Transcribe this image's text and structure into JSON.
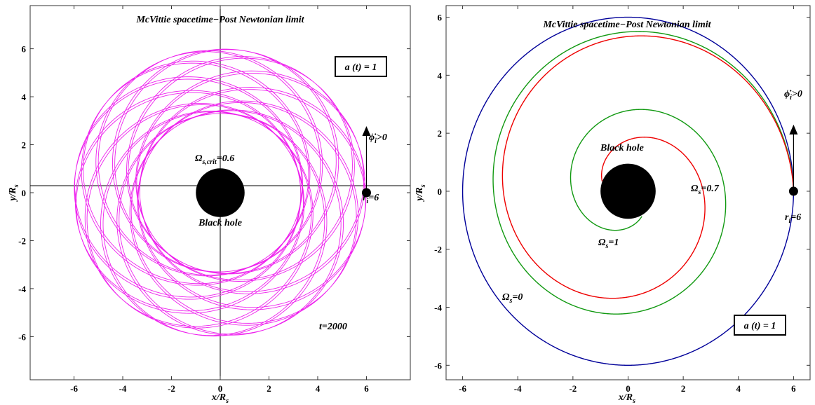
{
  "chart_data": [
    {
      "type": "line",
      "title": "McVittie spacetime−Post Newtonian limit",
      "xlabel": "x/R_s",
      "ylabel": "y/R_s",
      "xlim": [
        -7.8,
        7.8
      ],
      "ylim": [
        -7.8,
        7.8
      ],
      "xticks": [
        "-6",
        "-4",
        "-2",
        "0",
        "2",
        "4",
        "6"
      ],
      "yticks": [
        "-6",
        "-4",
        "-2",
        "0",
        "2",
        "4",
        "6"
      ],
      "tick_values": [
        -6,
        -4,
        -2,
        0,
        2,
        4,
        6
      ],
      "black_hole": {
        "label": "Black hole",
        "center": [
          0,
          0
        ],
        "radius": 1
      },
      "initial_point": {
        "x": 6,
        "y": 0,
        "label": "r",
        "label_sub": "i",
        "label_rest": "=6"
      },
      "velocity_label": "ϕ̇",
      "velocity_label_sub": "i",
      "velocity_label_rest": ">0",
      "scale_box": "a (t) = 1",
      "time_label": "t=2000",
      "series": [
        {
          "label": "Ω",
          "label_sub": "s,crit",
          "label_rest": "=0.6",
          "color": "#ee22ee",
          "r_min": 3.3,
          "r_max": 6.0,
          "precession_per_orbit_deg": 28,
          "orbits": 26
        }
      ]
    },
    {
      "type": "line",
      "title": "McVittie spacetime−Post Newtonian limit",
      "xlabel": "x/R_s",
      "ylabel": "y/R_s",
      "xlim": [
        -6.6,
        6.6
      ],
      "ylim": [
        -6.5,
        6.4
      ],
      "xticks": [
        "-6",
        "-4",
        "-2",
        "0",
        "2",
        "4",
        "6"
      ],
      "yticks": [
        "-6",
        "-4",
        "-2",
        "0",
        "2",
        "4",
        "6"
      ],
      "tick_values": [
        -6,
        -4,
        -2,
        0,
        2,
        4,
        6
      ],
      "black_hole": {
        "label": "Black hole",
        "center": [
          0,
          0
        ],
        "radius": 1
      },
      "initial_point": {
        "x": 6,
        "y": 0,
        "label": "r",
        "label_sub": "i",
        "label_rest": "=6"
      },
      "velocity_label": "ϕ̇",
      "velocity_label_sub": "i",
      "velocity_label_rest": ">0",
      "scale_box": "a (t) = 1",
      "series": [
        {
          "label": "Ω",
          "label_sub": "s",
          "label_rest": "=0",
          "color": "#000099",
          "r_start": 6,
          "r_end": 6,
          "sweep_deg": 360
        },
        {
          "label": "Ω",
          "label_sub": "s",
          "label_rest": "=0.7",
          "color": "#119911",
          "r_start": 6,
          "r_end": 1.0,
          "sweep_deg": 660
        },
        {
          "label": "Ω",
          "label_sub": "s",
          "label_rest": "=1",
          "color": "#ee0000",
          "r_start": 6,
          "r_end": 1.0,
          "sweep_deg": 520
        }
      ]
    }
  ]
}
